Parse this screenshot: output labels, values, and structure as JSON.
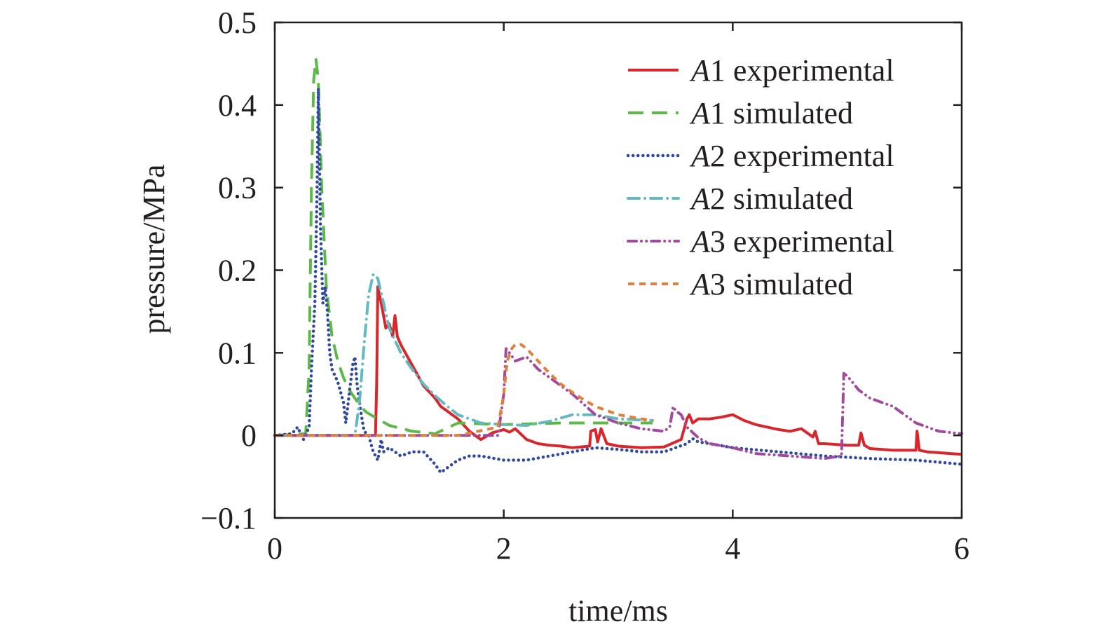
{
  "chart_data": {
    "type": "line",
    "xlabel": "time/ms",
    "ylabel": "pressure/MPa",
    "xlim": [
      0,
      6
    ],
    "ylim": [
      -0.1,
      0.5
    ],
    "xticks": [
      0,
      2,
      4,
      6
    ],
    "xtick_labels": [
      "0",
      "2",
      "4",
      "6"
    ],
    "yticks": [
      -0.1,
      0,
      0.1,
      0.2,
      0.3,
      0.4,
      0.5
    ],
    "ytick_labels": [
      "−0.1",
      "0",
      "0.1",
      "0.2",
      "0.3",
      "0.4",
      "0.5"
    ],
    "grid": false,
    "legend_position": "top-right",
    "series": [
      {
        "name": "A1 experimental",
        "name_italic": "A",
        "name_rest": "1 experimental",
        "color": "#d7262c",
        "style": "solid",
        "x": [
          0,
          0.5,
          0.88,
          0.89,
          0.9,
          0.93,
          0.97,
          1.0,
          1.03,
          1.05,
          1.07,
          1.1,
          1.2,
          1.3,
          1.4,
          1.45,
          1.5,
          1.55,
          1.6,
          1.7,
          1.8,
          1.9,
          2.0,
          2.05,
          2.1,
          2.2,
          2.3,
          2.4,
          2.5,
          2.6,
          2.75,
          2.76,
          2.8,
          2.82,
          2.85,
          2.9,
          3.0,
          3.2,
          3.4,
          3.55,
          3.6,
          3.62,
          3.65,
          3.7,
          3.8,
          3.9,
          4.0,
          4.1,
          4.2,
          4.4,
          4.5,
          4.6,
          4.7,
          4.72,
          4.75,
          4.8,
          5.0,
          5.1,
          5.12,
          5.15,
          5.2,
          5.4,
          5.6,
          5.61,
          5.63,
          5.7,
          5.8,
          5.9,
          6.0
        ],
        "y": [
          0,
          0,
          0,
          0.065,
          0.18,
          0.16,
          0.13,
          0.135,
          0.12,
          0.145,
          0.12,
          0.11,
          0.085,
          0.06,
          0.045,
          0.035,
          0.03,
          0.025,
          0.02,
          0.005,
          -0.005,
          0.003,
          0.007,
          0.004,
          0.008,
          -0.005,
          -0.01,
          -0.012,
          -0.013,
          -0.015,
          -0.013,
          0.005,
          0.007,
          -0.008,
          0.008,
          -0.01,
          -0.013,
          -0.015,
          -0.014,
          -0.005,
          0.02,
          0.025,
          0.015,
          0.02,
          0.02,
          0.022,
          0.025,
          0.018,
          0.013,
          0.007,
          0.005,
          0.008,
          -0.002,
          0.005,
          -0.01,
          -0.01,
          -0.012,
          -0.012,
          0.003,
          -0.012,
          -0.016,
          -0.018,
          -0.018,
          0.005,
          -0.018,
          -0.02,
          -0.021,
          -0.022,
          -0.023
        ]
      },
      {
        "name": "A1 simulated",
        "name_italic": "A",
        "name_rest": "1 simulated",
        "color": "#5bb947",
        "style": "dash",
        "x": [
          0,
          0.27,
          0.3,
          0.32,
          0.34,
          0.36,
          0.38,
          0.41,
          0.45,
          0.5,
          0.55,
          0.6,
          0.65,
          0.7,
          0.75,
          0.8,
          0.9,
          1.0,
          1.2,
          1.4,
          1.6,
          2.0,
          2.5,
          3.0,
          3.3
        ],
        "y": [
          0,
          0.002,
          0.08,
          0.3,
          0.43,
          0.455,
          0.43,
          0.3,
          0.18,
          0.12,
          0.09,
          0.07,
          0.055,
          0.045,
          0.035,
          0.028,
          0.02,
          0.012,
          0.005,
          0.002,
          0.015,
          0.013,
          0.015,
          0.015,
          0.015
        ]
      },
      {
        "name": "A2 experimental",
        "name_italic": "A",
        "name_rest": "2 experimental",
        "color": "#2f4a9c",
        "style": "dot",
        "x": [
          0,
          0.15,
          0.2,
          0.25,
          0.3,
          0.32,
          0.35,
          0.37,
          0.38,
          0.4,
          0.42,
          0.44,
          0.46,
          0.48,
          0.5,
          0.55,
          0.6,
          0.62,
          0.65,
          0.68,
          0.7,
          0.72,
          0.75,
          0.78,
          0.82,
          0.86,
          0.9,
          0.93,
          0.95,
          1.0,
          1.1,
          1.2,
          1.3,
          1.4,
          1.45,
          1.5,
          1.6,
          1.7,
          1.8,
          2.0,
          2.2,
          2.4,
          2.6,
          2.8,
          3.0,
          3.2,
          3.4,
          3.6,
          3.65,
          3.7,
          3.8,
          4.0,
          4.4,
          4.8,
          5.2,
          5.6,
          6.0
        ],
        "y": [
          0,
          0.002,
          0.01,
          -0.005,
          0.01,
          0.08,
          0.16,
          0.3,
          0.42,
          0.25,
          0.16,
          0.18,
          0.15,
          0.1,
          0.08,
          0.065,
          0.04,
          0.015,
          0.05,
          0.085,
          0.095,
          0.06,
          0.03,
          0.005,
          0.0,
          -0.02,
          -0.03,
          -0.005,
          -0.02,
          -0.015,
          -0.025,
          -0.02,
          -0.02,
          -0.035,
          -0.045,
          -0.04,
          -0.03,
          -0.025,
          -0.025,
          -0.03,
          -0.03,
          -0.025,
          -0.02,
          -0.015,
          -0.017,
          -0.02,
          -0.02,
          -0.01,
          -0.004,
          -0.008,
          -0.01,
          -0.015,
          -0.02,
          -0.025,
          -0.028,
          -0.03,
          -0.035
        ]
      },
      {
        "name": "A2 simulated",
        "name_italic": "A",
        "name_rest": "2 simulated",
        "color": "#62b9bf",
        "style": "dashdot",
        "x": [
          0,
          0.5,
          0.7,
          0.74,
          0.78,
          0.82,
          0.86,
          0.9,
          0.95,
          1.0,
          1.1,
          1.2,
          1.3,
          1.4,
          1.5,
          1.6,
          1.8,
          2.0,
          2.2,
          2.4,
          2.6,
          2.8,
          3.0,
          3.3
        ],
        "y": [
          0,
          0,
          0.0,
          0.04,
          0.11,
          0.17,
          0.195,
          0.19,
          0.16,
          0.13,
          0.1,
          0.08,
          0.062,
          0.048,
          0.036,
          0.025,
          0.015,
          0.013,
          0.012,
          0.017,
          0.025,
          0.025,
          0.02,
          0.018
        ]
      },
      {
        "name": "A3 experimental",
        "name_italic": "A",
        "name_rest": "3 experimental",
        "color": "#a24a9e",
        "style": "dashdotdot",
        "x": [
          0,
          1.5,
          1.95,
          2.0,
          2.02,
          2.05,
          2.1,
          2.2,
          2.3,
          2.4,
          2.6,
          2.8,
          3.0,
          3.2,
          3.4,
          3.45,
          3.48,
          3.5,
          3.55,
          3.6,
          3.7,
          3.8,
          4.0,
          4.2,
          4.5,
          4.8,
          4.95,
          4.97,
          5.0,
          5.1,
          5.2,
          5.4,
          5.6,
          5.8,
          6.0
        ],
        "y": [
          0,
          0,
          0.0,
          0.05,
          0.105,
          0.1,
          0.09,
          0.095,
          0.08,
          0.07,
          0.05,
          0.025,
          0.015,
          0.008,
          0.005,
          0.01,
          0.035,
          0.03,
          0.025,
          0.01,
          -0.003,
          -0.01,
          -0.015,
          -0.022,
          -0.025,
          -0.028,
          -0.025,
          0.075,
          0.072,
          0.055,
          0.045,
          0.035,
          0.015,
          0.005,
          0.002
        ]
      },
      {
        "name": "A3 simulated",
        "name_italic": "A",
        "name_rest": "3 simulated",
        "color": "#e0803a",
        "style": "shortdash",
        "x": [
          0,
          1.6,
          1.95,
          2.0,
          2.03,
          2.07,
          2.1,
          2.15,
          2.2,
          2.3,
          2.4,
          2.5,
          2.6,
          2.7,
          2.8,
          3.0,
          3.2,
          3.3
        ],
        "y": [
          0,
          0,
          0.01,
          0.05,
          0.09,
          0.105,
          0.11,
          0.11,
          0.105,
          0.09,
          0.075,
          0.062,
          0.052,
          0.043,
          0.035,
          0.025,
          0.02,
          0.018
        ]
      }
    ]
  }
}
